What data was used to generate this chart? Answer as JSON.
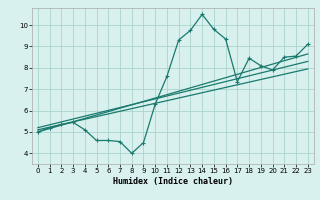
{
  "title": "",
  "xlabel": "Humidex (Indice chaleur)",
  "bg_color": "#d8f0ee",
  "grid_color": "#aad4cc",
  "line_color": "#1a7a6e",
  "xlim": [
    -0.5,
    23.5
  ],
  "ylim": [
    3.5,
    10.8
  ],
  "xticks": [
    0,
    1,
    2,
    3,
    4,
    5,
    6,
    7,
    8,
    9,
    10,
    11,
    12,
    13,
    14,
    15,
    16,
    17,
    18,
    19,
    20,
    21,
    22,
    23
  ],
  "yticks": [
    4,
    5,
    6,
    7,
    8,
    9,
    10
  ],
  "data_curve": {
    "x": [
      0,
      1,
      2,
      3,
      4,
      5,
      6,
      7,
      8,
      9,
      10,
      11,
      12,
      13,
      14,
      15,
      16,
      17,
      18,
      19,
      20,
      21,
      22,
      23
    ],
    "y": [
      5.0,
      5.2,
      5.35,
      5.45,
      5.1,
      4.6,
      4.6,
      4.55,
      4.0,
      4.5,
      6.3,
      7.6,
      9.3,
      9.75,
      10.5,
      9.8,
      9.35,
      7.35,
      8.45,
      8.1,
      7.9,
      8.5,
      8.55,
      9.1
    ]
  },
  "regression_lines": [
    {
      "x": [
        0,
        23
      ],
      "y": [
        5.0,
        8.65
      ]
    },
    {
      "x": [
        0,
        23
      ],
      "y": [
        5.1,
        7.95
      ]
    },
    {
      "x": [
        0,
        23
      ],
      "y": [
        5.2,
        8.3
      ]
    }
  ]
}
